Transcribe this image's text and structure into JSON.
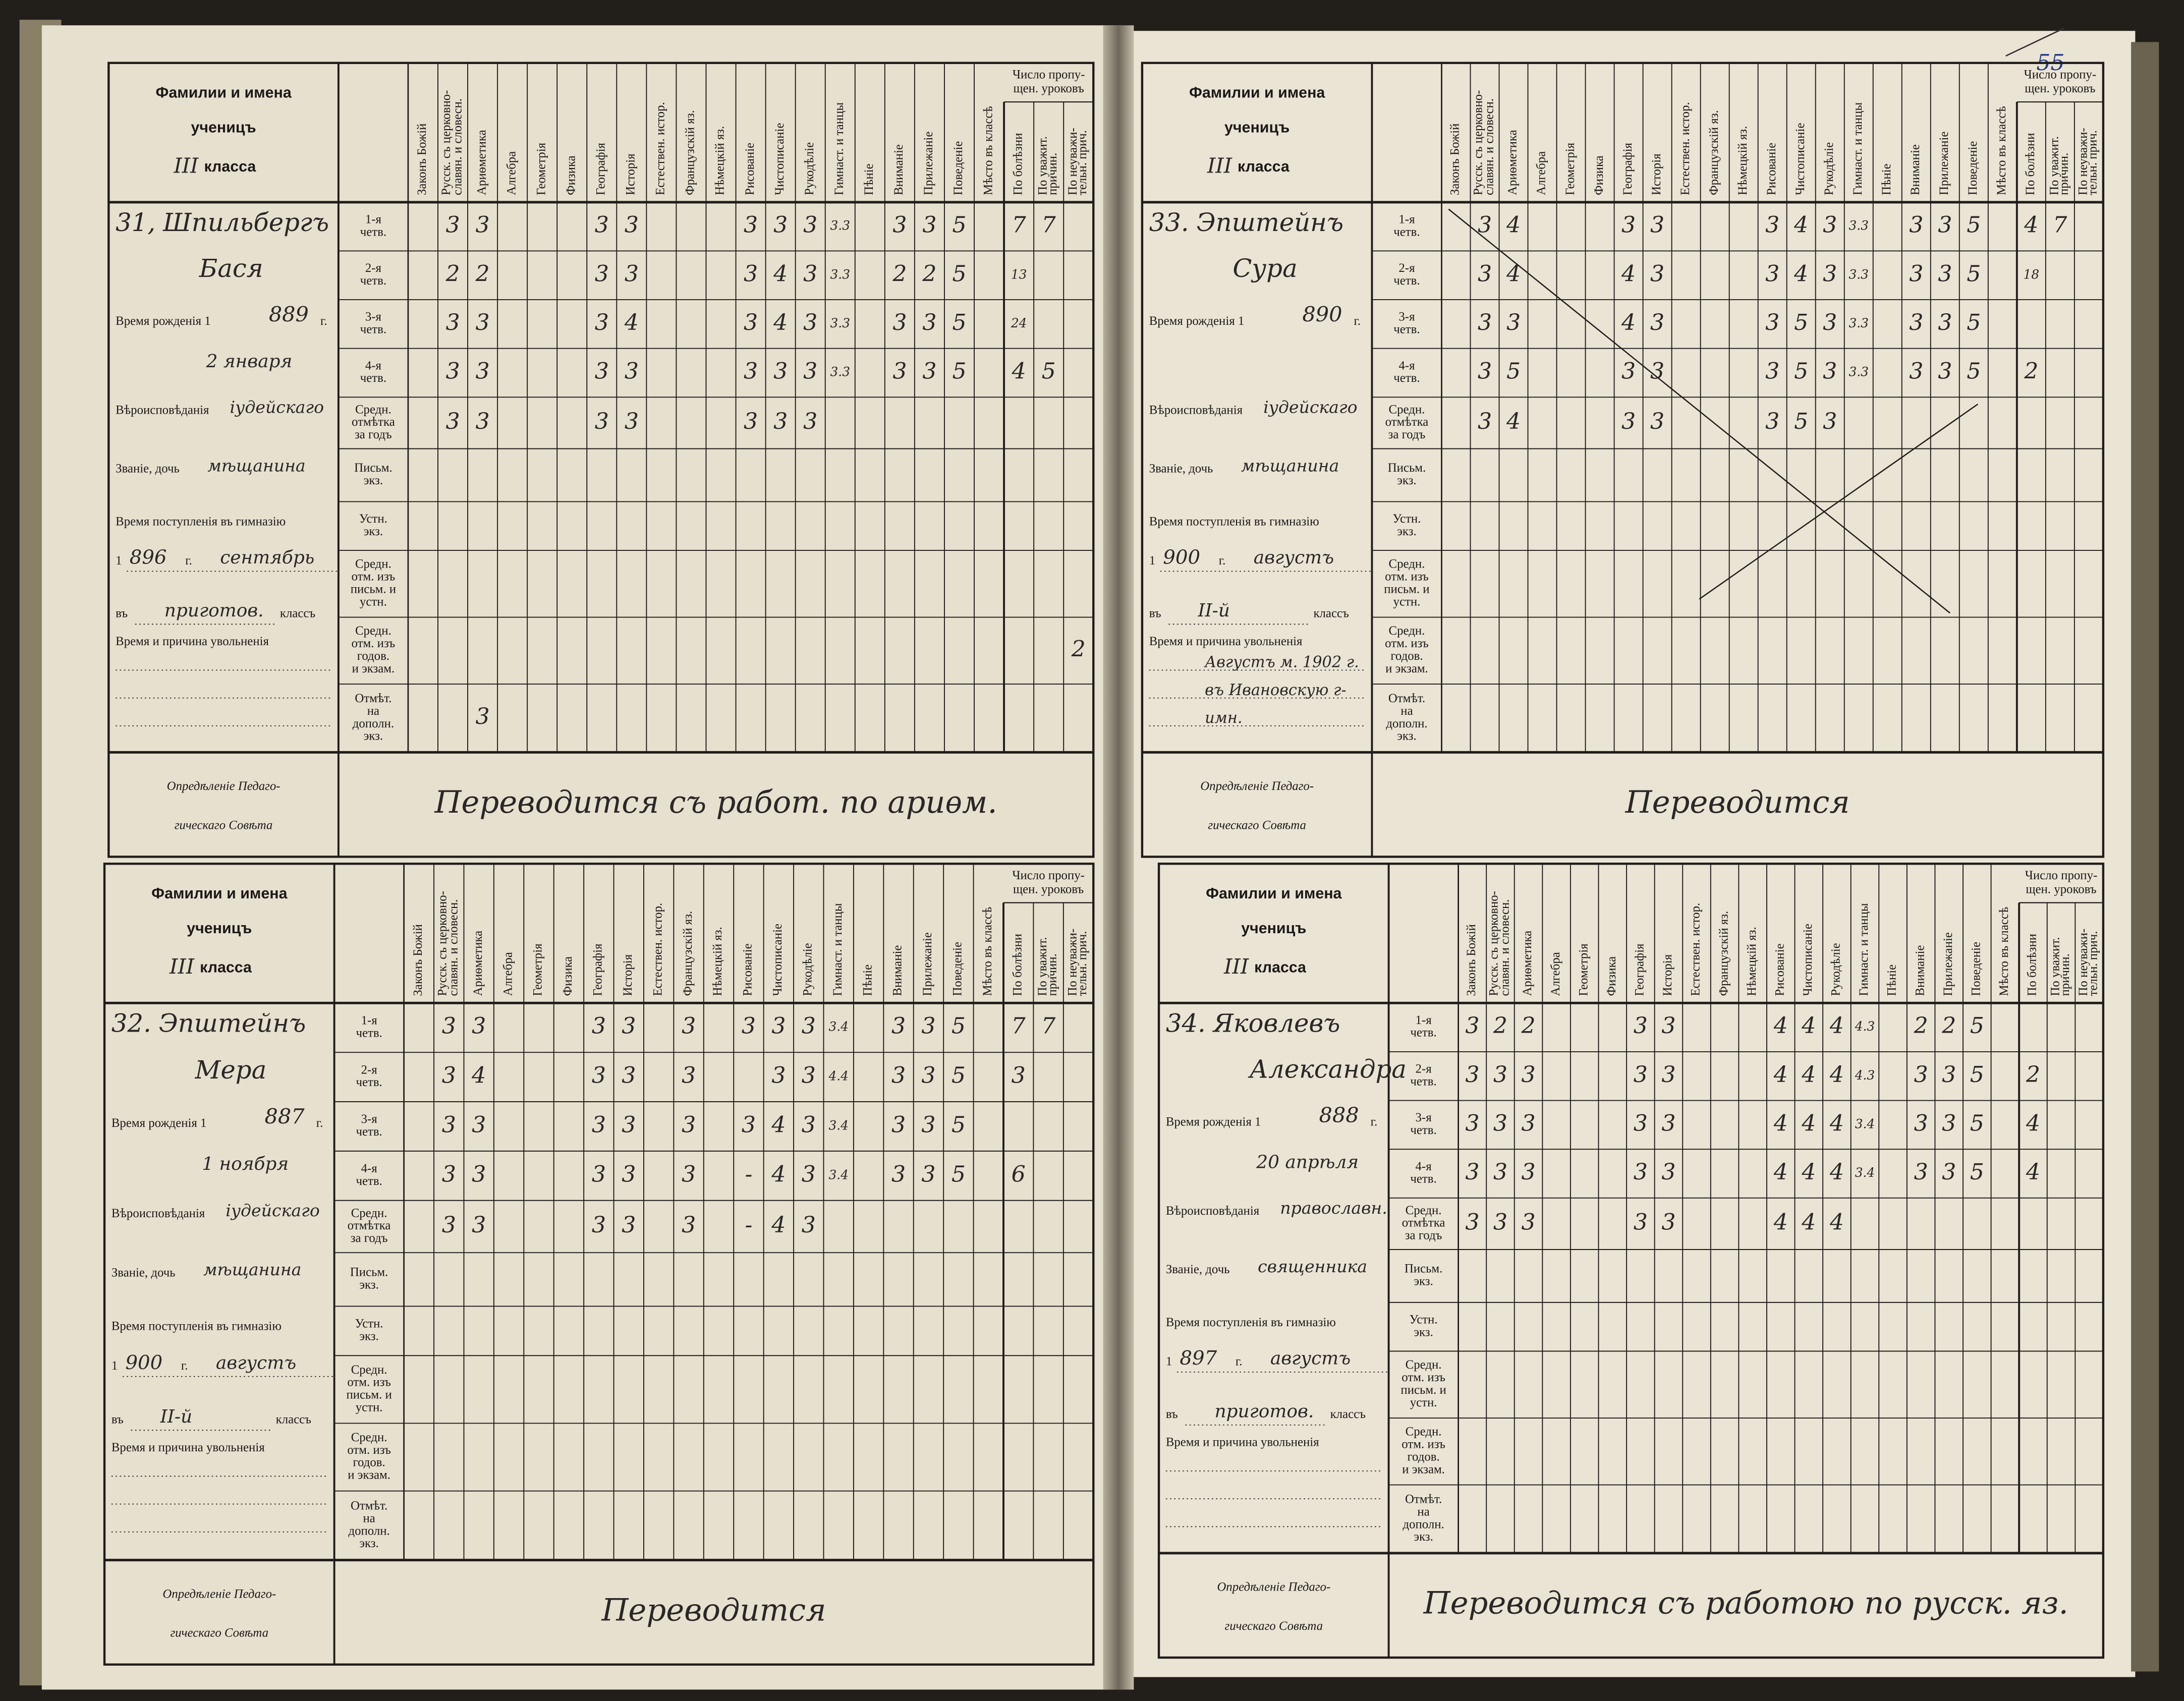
{
  "page_number": "55",
  "form": {
    "title_lines": [
      "Фамилии и имена",
      "ученицъ"
    ],
    "class_suffix": "класса",
    "subjects": [
      [
        "Законъ Божій"
      ],
      [
        "Русск. съ церковно-",
        "славян. и словесн."
      ],
      [
        "Ариѳметика"
      ],
      [
        "Алгебра"
      ],
      [
        "Геометрія"
      ],
      [
        "Физика"
      ],
      [
        "Географія"
      ],
      [
        "Исторія"
      ],
      [
        "Естествен. истор."
      ],
      [
        "Французскій яз."
      ],
      [
        "Нѣмецкій яз."
      ],
      [
        "Рисованіе"
      ],
      [
        "Чистописаніе"
      ],
      [
        "Рукодѣліе"
      ],
      [
        "Гимнаст. и танцы"
      ],
      [
        "Пѣніе"
      ],
      [
        "Вниманіе"
      ],
      [
        "Прилежаніе"
      ],
      [
        "Поведеніе"
      ],
      [
        "Мѣсто въ классѣ"
      ]
    ],
    "absence_title": [
      "Число пропу-",
      "щен. уроковъ"
    ],
    "absence_cols": [
      [
        "По болѣзни"
      ],
      [
        "По уважит.",
        "причин."
      ],
      [
        "По неуважи-",
        "тельн. прич."
      ]
    ],
    "periods": [
      [
        "1-я",
        "четв."
      ],
      [
        "2-я",
        "четв."
      ],
      [
        "3-я",
        "четв."
      ],
      [
        "4-я",
        "четв."
      ],
      [
        "Средн.",
        "отмѣтка",
        "за годъ"
      ],
      [
        "Письм.",
        "экз."
      ],
      [
        "Устн.",
        "экз."
      ],
      [
        "Средн.",
        "отм. изъ",
        "письм. и",
        "устн."
      ],
      [
        "Средн.",
        "отм. изъ",
        "годов.",
        "и экзам."
      ],
      [
        "Отмѣт.",
        "на",
        "дополн.",
        "экз."
      ]
    ],
    "birth_label": "Время рожденія 1",
    "year_suffix": "г.",
    "religion_label": "Вѣроисповѣданія",
    "estate_label": "Званіе, дочь",
    "entry_label": "Время поступленія въ гимназію",
    "entry_year_prefix": "1",
    "class_prefix": "въ",
    "class_label": "классъ",
    "dismissal_label": "Время и причина увольненія",
    "decision_label": [
      "Опредѣленіе Педаго-",
      "гическаго Совѣта"
    ]
  },
  "students": [
    {
      "number": "31,",
      "surname": "Шпильбергъ",
      "first_name": "Бася",
      "class": "III",
      "birth_year": "889",
      "birth_date": "2 января",
      "religion": "іудейскаго",
      "estate": "мѣщанина",
      "entry_year": "896",
      "entry_month": "сентябрь",
      "entry_class": "приготов.",
      "dismissal": null,
      "decision": "Переводится съ работ. по ариѳм.",
      "grades": [
        [
          null,
          "3",
          "3",
          null,
          null,
          null,
          "3",
          "3",
          null,
          null,
          null,
          "3",
          "3",
          "3",
          "3.3",
          null,
          "3",
          "3",
          "5",
          null,
          "7",
          "7",
          null
        ],
        [
          null,
          "2",
          "2",
          null,
          null,
          null,
          "3",
          "3",
          null,
          null,
          null,
          "3",
          "4",
          "3",
          "3.3",
          null,
          "2",
          "2",
          "5",
          null,
          "13",
          null,
          null
        ],
        [
          null,
          "3",
          "3",
          null,
          null,
          null,
          "3",
          "4",
          null,
          null,
          null,
          "3",
          "4",
          "3",
          "3.3",
          null,
          "3",
          "3",
          "5",
          null,
          "24",
          null,
          null
        ],
        [
          null,
          "3",
          "3",
          null,
          null,
          null,
          "3",
          "3",
          null,
          null,
          null,
          "3",
          "3",
          "3",
          "3.3",
          null,
          "3",
          "3",
          "5",
          null,
          "4",
          "5",
          null
        ],
        [
          null,
          "3",
          "3",
          null,
          null,
          null,
          "3",
          "3",
          null,
          null,
          null,
          "3",
          "3",
          "3",
          null,
          null,
          null,
          null,
          null,
          null,
          null,
          null,
          null
        ],
        [
          null,
          null,
          null,
          null,
          null,
          null,
          null,
          null,
          null,
          null,
          null,
          null,
          null,
          null,
          null,
          null,
          null,
          null,
          null,
          null,
          null,
          null,
          null
        ],
        [
          null,
          null,
          null,
          null,
          null,
          null,
          null,
          null,
          null,
          null,
          null,
          null,
          null,
          null,
          null,
          null,
          null,
          null,
          null,
          null,
          null,
          null,
          null
        ],
        [
          null,
          null,
          null,
          null,
          null,
          null,
          null,
          null,
          null,
          null,
          null,
          null,
          null,
          null,
          null,
          null,
          null,
          null,
          null,
          null,
          null,
          null,
          null
        ],
        [
          null,
          null,
          null,
          null,
          null,
          null,
          null,
          null,
          null,
          null,
          null,
          null,
          null,
          null,
          null,
          null,
          null,
          null,
          null,
          null,
          null,
          null,
          "2"
        ],
        [
          null,
          null,
          "3",
          null,
          null,
          null,
          null,
          null,
          null,
          null,
          null,
          null,
          null,
          null,
          null,
          null,
          null,
          null,
          null,
          null,
          null,
          null,
          null
        ]
      ]
    },
    {
      "number": "32.",
      "surname": "Эпштейнъ",
      "first_name": "Мера",
      "class": "III",
      "birth_year": "887",
      "birth_date": "1 ноября",
      "religion": "іудейскаго",
      "estate": "мѣщанина",
      "entry_year": "900",
      "entry_month": "августъ",
      "entry_class": "II-й",
      "dismissal": null,
      "decision": "Переводится",
      "grades": [
        [
          null,
          "3",
          "3",
          null,
          null,
          null,
          "3",
          "3",
          null,
          "3",
          null,
          "3",
          "3",
          "3",
          "3.4",
          null,
          "3",
          "3",
          "5",
          null,
          "7",
          "7",
          null
        ],
        [
          null,
          "3",
          "4",
          null,
          null,
          null,
          "3",
          "3",
          null,
          "3",
          null,
          null,
          "3",
          "3",
          "4.4",
          null,
          "3",
          "3",
          "5",
          null,
          "3",
          null,
          null
        ],
        [
          null,
          "3",
          "3",
          null,
          null,
          null,
          "3",
          "3",
          null,
          "3",
          null,
          "3",
          "4",
          "3",
          "3.4",
          null,
          "3",
          "3",
          "5",
          null,
          null,
          null,
          null
        ],
        [
          null,
          "3",
          "3",
          null,
          null,
          null,
          "3",
          "3",
          null,
          "3",
          null,
          "-",
          "4",
          "3",
          "3.4",
          null,
          "3",
          "3",
          "5",
          null,
          "6",
          null,
          null
        ],
        [
          null,
          "3",
          "3",
          null,
          null,
          null,
          "3",
          "3",
          null,
          "3",
          null,
          "-",
          "4",
          "3",
          null,
          null,
          null,
          null,
          null,
          null,
          null,
          null,
          null
        ],
        [
          null,
          null,
          null,
          null,
          null,
          null,
          null,
          null,
          null,
          null,
          null,
          null,
          null,
          null,
          null,
          null,
          null,
          null,
          null,
          null,
          null,
          null,
          null
        ],
        [
          null,
          null,
          null,
          null,
          null,
          null,
          null,
          null,
          null,
          null,
          null,
          null,
          null,
          null,
          null,
          null,
          null,
          null,
          null,
          null,
          null,
          null,
          null
        ],
        [
          null,
          null,
          null,
          null,
          null,
          null,
          null,
          null,
          null,
          null,
          null,
          null,
          null,
          null,
          null,
          null,
          null,
          null,
          null,
          null,
          null,
          null,
          null
        ],
        [
          null,
          null,
          null,
          null,
          null,
          null,
          null,
          null,
          null,
          null,
          null,
          null,
          null,
          null,
          null,
          null,
          null,
          null,
          null,
          null,
          null,
          null,
          null
        ],
        [
          null,
          null,
          null,
          null,
          null,
          null,
          null,
          null,
          null,
          null,
          null,
          null,
          null,
          null,
          null,
          null,
          null,
          null,
          null,
          null,
          null,
          null,
          null
        ]
      ]
    },
    {
      "number": "33.",
      "surname": "Эпштейнъ",
      "first_name": "Сура",
      "class": "III",
      "birth_year": "890",
      "birth_date": null,
      "religion": "іудейскаго",
      "estate": "мѣщанина",
      "entry_year": "900",
      "entry_month": "августъ",
      "entry_class": "II-й",
      "dismissal": [
        "Августъ м. 1902 г.",
        "въ Ивановскую г-",
        "имн."
      ],
      "decision": "Переводится",
      "grades": [
        [
          null,
          "3",
          "4",
          null,
          null,
          null,
          "3",
          "3",
          null,
          null,
          null,
          "3",
          "4",
          "3",
          "3.3",
          null,
          "3",
          "3",
          "5",
          null,
          "4",
          "7",
          null
        ],
        [
          null,
          "3",
          "4",
          null,
          null,
          null,
          "4",
          "3",
          null,
          null,
          null,
          "3",
          "4",
          "3",
          "3.3",
          null,
          "3",
          "3",
          "5",
          null,
          "18",
          null,
          null
        ],
        [
          null,
          "3",
          "3",
          null,
          null,
          null,
          "4",
          "3",
          null,
          null,
          null,
          "3",
          "5",
          "3",
          "3.3",
          null,
          "3",
          "3",
          "5",
          null,
          null,
          null,
          null
        ],
        [
          null,
          "3",
          "5",
          null,
          null,
          null,
          "3",
          "3",
          null,
          null,
          null,
          "3",
          "5",
          "3",
          "3.3",
          null,
          "3",
          "3",
          "5",
          null,
          "2",
          null,
          null
        ],
        [
          null,
          "3",
          "4",
          null,
          null,
          null,
          "3",
          "3",
          null,
          null,
          null,
          "3",
          "5",
          "3",
          null,
          null,
          null,
          null,
          null,
          null,
          null,
          null,
          null
        ],
        [
          null,
          null,
          null,
          null,
          null,
          null,
          null,
          null,
          null,
          null,
          null,
          null,
          null,
          null,
          null,
          null,
          null,
          null,
          null,
          null,
          null,
          null,
          null
        ],
        [
          null,
          null,
          null,
          null,
          null,
          null,
          null,
          null,
          null,
          null,
          null,
          null,
          null,
          null,
          null,
          null,
          null,
          null,
          null,
          null,
          null,
          null,
          null
        ],
        [
          null,
          null,
          null,
          null,
          null,
          null,
          null,
          null,
          null,
          null,
          null,
          null,
          null,
          null,
          null,
          null,
          null,
          null,
          null,
          null,
          null,
          null,
          null
        ],
        [
          null,
          null,
          null,
          null,
          null,
          null,
          null,
          null,
          null,
          null,
          null,
          null,
          null,
          null,
          null,
          null,
          null,
          null,
          null,
          null,
          null,
          null,
          null
        ],
        [
          null,
          null,
          null,
          null,
          null,
          null,
          null,
          null,
          null,
          null,
          null,
          null,
          null,
          null,
          null,
          null,
          null,
          null,
          null,
          null,
          null,
          null,
          null
        ]
      ]
    },
    {
      "number": "34.",
      "surname": "Яковлевъ",
      "first_name": "Александра",
      "class": "III",
      "birth_year": "888",
      "birth_date": "20 апрѣля",
      "religion": "православн.",
      "estate": "священника",
      "entry_year": "897",
      "entry_month": "августъ",
      "entry_class": "приготов.",
      "dismissal": null,
      "decision": "Переводится съ работою по русск. яз.",
      "grades": [
        [
          "3",
          "2",
          "2",
          null,
          null,
          null,
          "3",
          "3",
          null,
          null,
          null,
          "4",
          "4",
          "4",
          "4.3",
          null,
          "2",
          "2",
          "5",
          null,
          null,
          null,
          null
        ],
        [
          "3",
          "3",
          "3",
          null,
          null,
          null,
          "3",
          "3",
          null,
          null,
          null,
          "4",
          "4",
          "4",
          "4.3",
          null,
          "3",
          "3",
          "5",
          null,
          "2",
          null,
          null
        ],
        [
          "3",
          "3",
          "3",
          null,
          null,
          null,
          "3",
          "3",
          null,
          null,
          null,
          "4",
          "4",
          "4",
          "3.4",
          null,
          "3",
          "3",
          "5",
          null,
          "4",
          null,
          null
        ],
        [
          "3",
          "3",
          "3",
          null,
          null,
          null,
          "3",
          "3",
          null,
          null,
          null,
          "4",
          "4",
          "4",
          "3.4",
          null,
          "3",
          "3",
          "5",
          null,
          "4",
          null,
          null
        ],
        [
          "3",
          "3",
          "3",
          null,
          null,
          null,
          "3",
          "3",
          null,
          null,
          null,
          "4",
          "4",
          "4",
          null,
          null,
          null,
          null,
          null,
          null,
          null,
          null,
          null
        ],
        [
          null,
          null,
          null,
          null,
          null,
          null,
          null,
          null,
          null,
          null,
          null,
          null,
          null,
          null,
          null,
          null,
          null,
          null,
          null,
          null,
          null,
          null,
          null
        ],
        [
          null,
          null,
          null,
          null,
          null,
          null,
          null,
          null,
          null,
          null,
          null,
          null,
          null,
          null,
          null,
          null,
          null,
          null,
          null,
          null,
          null,
          null,
          null
        ],
        [
          null,
          null,
          null,
          null,
          null,
          null,
          null,
          null,
          null,
          null,
          null,
          null,
          null,
          null,
          null,
          null,
          null,
          null,
          null,
          null,
          null,
          null,
          null
        ],
        [
          null,
          null,
          null,
          null,
          null,
          null,
          null,
          null,
          null,
          null,
          null,
          null,
          null,
          null,
          null,
          null,
          null,
          null,
          null,
          null,
          null,
          null,
          null
        ],
        [
          null,
          null,
          null,
          null,
          null,
          null,
          null,
          null,
          null,
          null,
          null,
          null,
          null,
          null,
          null,
          null,
          null,
          null,
          null,
          null,
          null,
          null,
          null
        ]
      ]
    }
  ]
}
